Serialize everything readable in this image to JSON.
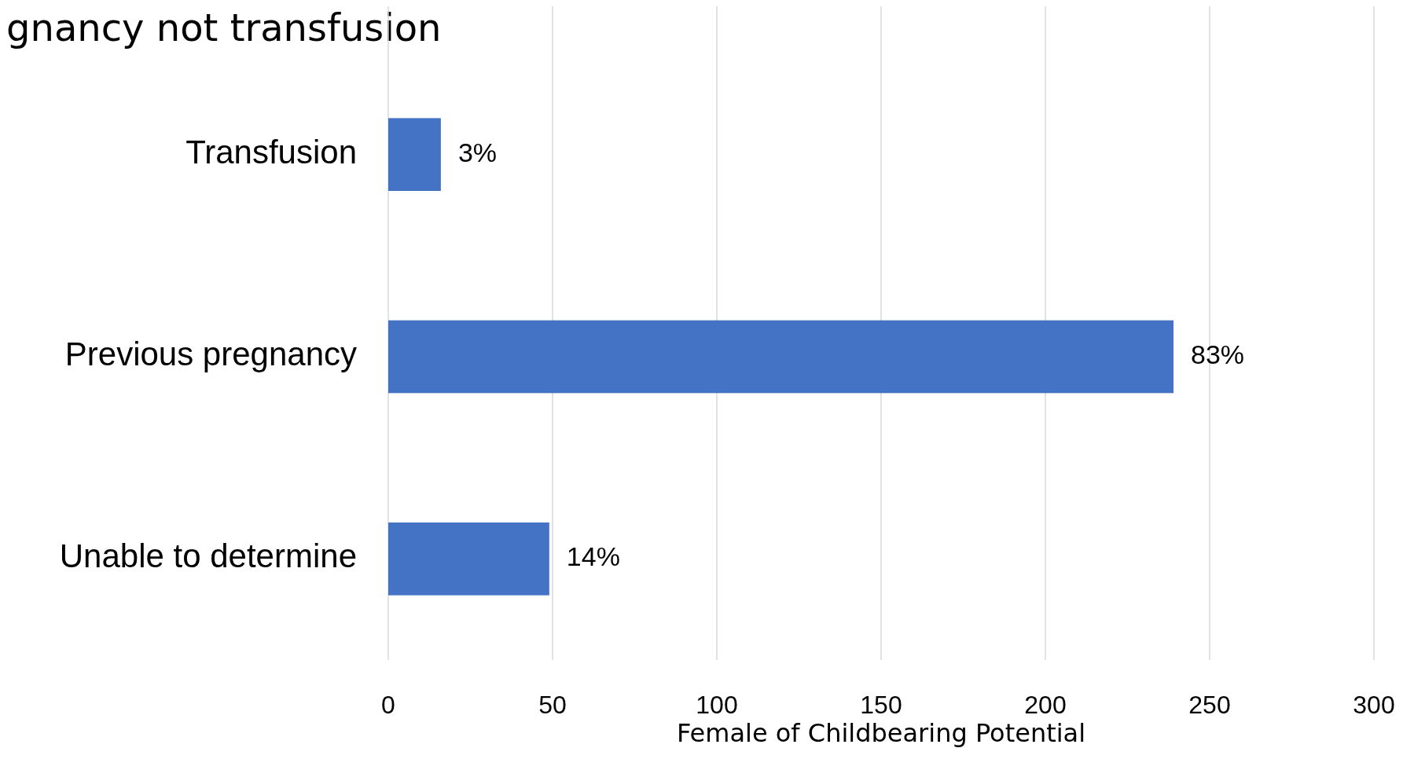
{
  "chart_data": {
    "type": "bar",
    "orientation": "horizontal",
    "title": "gnancy not transfusion",
    "categories": [
      "Transfusion",
      "Previous pregnancy",
      "Unable to determine"
    ],
    "values": [
      16,
      239,
      49
    ],
    "annotations": [
      {
        "text": "3%",
        "x": 16,
        "y": "Transfusion"
      },
      {
        "text": "83%",
        "x": 239,
        "y": "Previous pregnancy"
      },
      {
        "text": "14%",
        "x": 49,
        "y": "Unable to determine"
      }
    ],
    "color": "#4472c4",
    "xlabel": "Female of Childbearing Potential",
    "xlim": [
      0,
      300
    ],
    "xticks": [
      0,
      50,
      100,
      150,
      200,
      250,
      300
    ],
    "grid": "x"
  }
}
